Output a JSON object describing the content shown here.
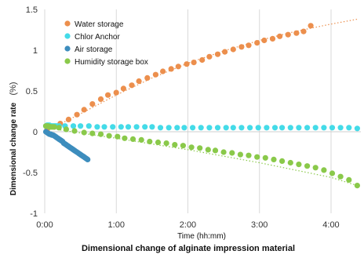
{
  "chart_data": {
    "type": "scatter",
    "title": "Dimensional change of alginate impression material",
    "xlabel": "Time (hh:mm)",
    "ylabel": "Dimensional change rate",
    "ylabel_unit": "(%)",
    "xlim": [
      0,
      265
    ],
    "ylim": [
      -1,
      1.5
    ],
    "xticks": [
      0,
      60,
      120,
      180,
      240
    ],
    "xtick_labels": [
      "0:00",
      "1:00",
      "2:00",
      "3:00",
      "4:00"
    ],
    "yticks": [
      -1,
      -0.5,
      0,
      0.5,
      1,
      1.5
    ],
    "ytick_labels": [
      "-1",
      "-0.5",
      "0",
      "0.5",
      "1",
      "1.5"
    ],
    "grid": {
      "x": true,
      "y": false
    },
    "legend_position": "top-left",
    "series": [
      {
        "name": "Water storage",
        "color": "#ec8f4d",
        "trend": {
          "x": [
            0,
            30,
            60,
            90,
            120,
            150,
            180,
            210,
            240,
            262
          ],
          "y": [
            0.0,
            0.22,
            0.45,
            0.66,
            0.84,
            0.99,
            1.12,
            1.23,
            1.32,
            1.38
          ]
        },
        "x": [
          2,
          8,
          13,
          20,
          27,
          33,
          40,
          47,
          53,
          60,
          66,
          73,
          79,
          86,
          93,
          99,
          106,
          112,
          119,
          125,
          132,
          138,
          145,
          151,
          158,
          165,
          171,
          178,
          184,
          191,
          197,
          204,
          211,
          217,
          223
        ],
        "y": [
          0.02,
          0.06,
          0.1,
          0.15,
          0.21,
          0.27,
          0.34,
          0.4,
          0.45,
          0.48,
          0.53,
          0.57,
          0.62,
          0.66,
          0.7,
          0.74,
          0.77,
          0.8,
          0.83,
          0.85,
          0.88,
          0.92,
          0.95,
          0.98,
          1.01,
          1.04,
          1.06,
          1.09,
          1.12,
          1.14,
          1.17,
          1.19,
          1.21,
          1.23,
          1.3
        ]
      },
      {
        "name": "Chlor Anchor",
        "color": "#44dbe8",
        "x": [
          1,
          2,
          3,
          4,
          5,
          6,
          7,
          8,
          9,
          10,
          12,
          17,
          24,
          30,
          37,
          44,
          50,
          57,
          64,
          70,
          77,
          84,
          90,
          97,
          104,
          111,
          117,
          124,
          131,
          138,
          145,
          152,
          158,
          165,
          172,
          179,
          186,
          193,
          199,
          206,
          213,
          220,
          227,
          234,
          241,
          248,
          255,
          262
        ],
        "y": [
          0.07,
          0.08,
          0.08,
          0.08,
          0.07,
          0.07,
          0.07,
          0.07,
          0.07,
          0.07,
          0.07,
          0.07,
          0.07,
          0.07,
          0.07,
          0.06,
          0.06,
          0.06,
          0.06,
          0.06,
          0.06,
          0.06,
          0.06,
          0.05,
          0.05,
          0.05,
          0.05,
          0.05,
          0.05,
          0.05,
          0.05,
          0.05,
          0.05,
          0.05,
          0.05,
          0.05,
          0.05,
          0.05,
          0.05,
          0.05,
          0.05,
          0.05,
          0.05,
          0.05,
          0.05,
          0.05,
          0.05,
          0.04
        ]
      },
      {
        "name": "Air storage",
        "color": "#3d8dbd",
        "x": [
          1,
          2,
          3,
          4,
          5,
          6,
          7,
          8,
          9,
          10,
          11,
          12,
          13,
          14,
          15,
          16,
          17,
          18,
          19,
          20,
          21,
          22,
          23,
          24,
          25,
          26,
          27,
          28,
          29,
          30,
          31,
          32,
          33,
          34,
          35,
          36
        ],
        "y": [
          0.0,
          -0.01,
          -0.02,
          -0.03,
          -0.03,
          -0.04,
          -0.04,
          -0.05,
          -0.06,
          -0.07,
          -0.08,
          -0.09,
          -0.1,
          -0.11,
          -0.12,
          -0.14,
          -0.15,
          -0.16,
          -0.17,
          -0.18,
          -0.19,
          -0.2,
          -0.21,
          -0.22,
          -0.23,
          -0.24,
          -0.25,
          -0.26,
          -0.27,
          -0.28,
          -0.29,
          -0.3,
          -0.31,
          -0.32,
          -0.33,
          -0.34
        ]
      },
      {
        "name": "Humidity storage box",
        "color": "#8ac94a",
        "trend": {
          "x": [
            0,
            60,
            120,
            180,
            240,
            262
          ],
          "y": [
            0.05,
            -0.08,
            -0.22,
            -0.38,
            -0.56,
            -0.66
          ]
        },
        "x": [
          1,
          2,
          3,
          4,
          5,
          6,
          7,
          8,
          12,
          18,
          25,
          33,
          40,
          47,
          54,
          61,
          67,
          74,
          81,
          88,
          95,
          102,
          109,
          116,
          123,
          130,
          137,
          143,
          150,
          157,
          164,
          171,
          178,
          185,
          192,
          199,
          206,
          213,
          220,
          227,
          234,
          241,
          248,
          255,
          262
        ],
        "y": [
          0.07,
          0.07,
          0.07,
          0.06,
          0.06,
          0.06,
          0.06,
          0.06,
          0.05,
          0.03,
          0.01,
          -0.01,
          -0.02,
          -0.03,
          -0.05,
          -0.06,
          -0.08,
          -0.09,
          -0.1,
          -0.12,
          -0.13,
          -0.14,
          -0.16,
          -0.17,
          -0.19,
          -0.2,
          -0.22,
          -0.23,
          -0.25,
          -0.26,
          -0.28,
          -0.29,
          -0.31,
          -0.32,
          -0.34,
          -0.36,
          -0.38,
          -0.4,
          -0.42,
          -0.44,
          -0.47,
          -0.51,
          -0.55,
          -0.59,
          -0.66
        ]
      }
    ]
  }
}
